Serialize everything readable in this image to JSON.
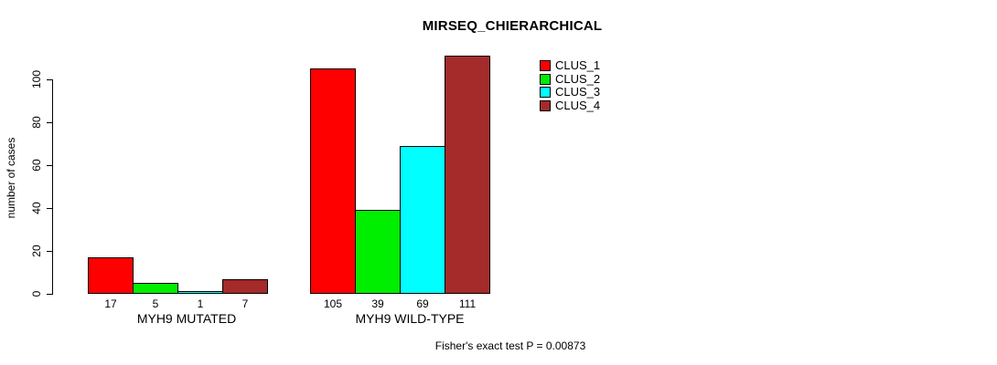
{
  "title": "MIRSEQ_CHIERARCHICAL",
  "footer": "Fisher's exact test P = 0.00873",
  "chart_data": {
    "type": "bar",
    "title": "MIRSEQ_CHIERARCHICAL",
    "xlabel": "",
    "ylabel": "number of cases",
    "ylim": [
      0,
      111
    ],
    "yticks": [
      0,
      20,
      40,
      60,
      80,
      100
    ],
    "grid": false,
    "legend_position": "top-right",
    "categories": [
      "MYH9 MUTATED",
      "MYH9 WILD-TYPE"
    ],
    "series": [
      {
        "name": "CLUS_1",
        "color": "#FF0000",
        "values": [
          17,
          105
        ]
      },
      {
        "name": "CLUS_2",
        "color": "#00EE00",
        "values": [
          5,
          39
        ]
      },
      {
        "name": "CLUS_3",
        "color": "#00FFFF",
        "values": [
          1,
          69
        ]
      },
      {
        "name": "CLUS_4",
        "color": "#A52A2A",
        "values": [
          7,
          111
        ]
      }
    ],
    "bar_value_labels_shown": true,
    "annotation": "Fisher's exact test P = 0.00873",
    "axis_color": "#000000",
    "background_color": "#FFFFFF"
  }
}
